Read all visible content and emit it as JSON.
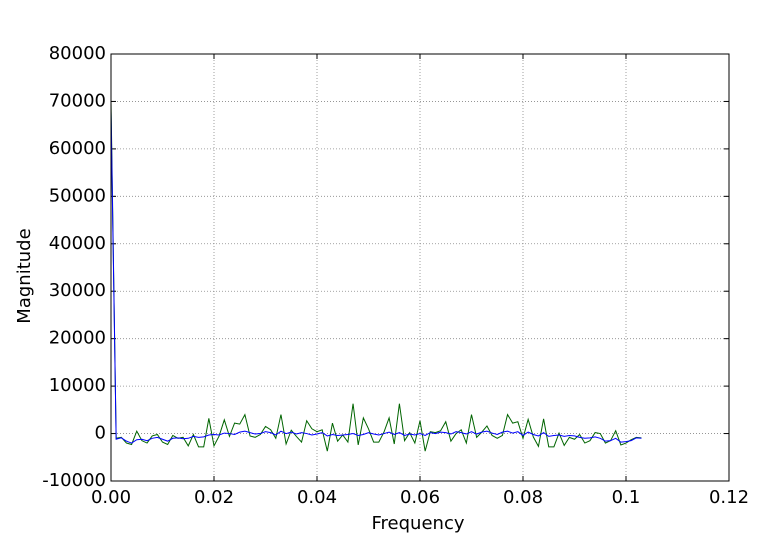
{
  "chart_data": {
    "type": "line",
    "x_label": "Frequency",
    "y_label": "Magnitude",
    "x": [
      0,
      0.001,
      0.002,
      0.003,
      0.004,
      0.005,
      0.006,
      0.007,
      0.008,
      0.009,
      0.01,
      0.011,
      0.012,
      0.013,
      0.014,
      0.015,
      0.016,
      0.017,
      0.018,
      0.019,
      0.02,
      0.021,
      0.022,
      0.023,
      0.024,
      0.025,
      0.026,
      0.027,
      0.028,
      0.029,
      0.03,
      0.031,
      0.032,
      0.033,
      0.034,
      0.035,
      0.036,
      0.037,
      0.038,
      0.039,
      0.04,
      0.041,
      0.042,
      0.043,
      0.044,
      0.045,
      0.046,
      0.047,
      0.048,
      0.049,
      0.05,
      0.051,
      0.052,
      0.053,
      0.054,
      0.055,
      0.056,
      0.057,
      0.058,
      0.059,
      0.06,
      0.061,
      0.062,
      0.063,
      0.064,
      0.065,
      0.066,
      0.067,
      0.068,
      0.069,
      0.07,
      0.071,
      0.072,
      0.073,
      0.074,
      0.075,
      0.076,
      0.077,
      0.078,
      0.079,
      0.08,
      0.081,
      0.082,
      0.083,
      0.084,
      0.085,
      0.086,
      0.087,
      0.088,
      0.089,
      0.09,
      0.091,
      0.092,
      0.093,
      0.094,
      0.095,
      0.096,
      0.097,
      0.098,
      0.099,
      0.1,
      0.101,
      0.102,
      0.103
    ],
    "series": [
      {
        "color": "#006400",
        "values": [
          70000,
          -1000,
          -800,
          -2000,
          -2300,
          500,
          -1500,
          -2000,
          -500,
          -200,
          -1800,
          -2300,
          -400,
          -1000,
          -800,
          -2600,
          -200,
          -2800,
          -2800,
          3200,
          -2600,
          -500,
          2900,
          -600,
          2200,
          2000,
          4000,
          -500,
          -800,
          -200,
          1500,
          800,
          -1000,
          4000,
          -2200,
          700,
          -600,
          -1800,
          2700,
          1000,
          400,
          800,
          -3700,
          2200,
          -1600,
          -300,
          -1800,
          6300,
          -2400,
          3300,
          1000,
          -1800,
          -1800,
          300,
          3300,
          -2200,
          6300,
          -1500,
          200,
          -2000,
          2700,
          -3700,
          400,
          200,
          600,
          2500,
          -1600,
          0,
          800,
          -2000,
          4000,
          -800,
          300,
          1600,
          -400,
          -1000,
          -400,
          4000,
          2200,
          2500,
          -1000,
          3000,
          -700,
          -2700,
          3100,
          -2800,
          -2800,
          100,
          -2500,
          -800,
          -1200,
          -200,
          -2000,
          -1500,
          200,
          0,
          -2000,
          -1500,
          600,
          -2400,
          -2000,
          -1300,
          -800,
          -900
        ]
      },
      {
        "color": "#0000ff",
        "values": [
          68000,
          -1200,
          -900,
          -1600,
          -2000,
          -1300,
          -1200,
          -1500,
          -1000,
          -800,
          -1200,
          -1600,
          -1000,
          -900,
          -1100,
          -1000,
          -600,
          -800,
          -700,
          -300,
          -200,
          -300,
          100,
          0,
          -200,
          300,
          500,
          200,
          -100,
          0,
          400,
          200,
          -300,
          500,
          0,
          300,
          -100,
          200,
          0,
          -300,
          -100,
          200,
          -500,
          -200,
          -400,
          -300,
          -200,
          0,
          -400,
          -200,
          200,
          -100,
          -300,
          0,
          300,
          -200,
          200,
          -400,
          -100,
          -300,
          0,
          -400,
          200,
          0,
          300,
          200,
          -100,
          400,
          200,
          -100,
          400,
          -100,
          300,
          500,
          100,
          -200,
          300,
          500,
          100,
          400,
          -400,
          300,
          -200,
          -500,
          200,
          -600,
          -400,
          -300,
          -600,
          -400,
          -500,
          -800,
          -1000,
          -900,
          -700,
          -1000,
          -1600,
          -1500,
          -1000,
          -1800,
          -1700,
          -1500,
          -900,
          -1000
        ]
      }
    ],
    "xlim": [
      0,
      0.12
    ],
    "ylim": [
      -10000,
      80000
    ],
    "xticks": [
      {
        "value": 0,
        "label": "0.00"
      },
      0.02,
      0.04,
      0.06,
      0.08,
      0.1,
      0.12
    ],
    "yticks": [
      -10000,
      0,
      10000,
      20000,
      30000,
      40000,
      50000,
      60000,
      70000,
      80000
    ],
    "grid": true
  }
}
